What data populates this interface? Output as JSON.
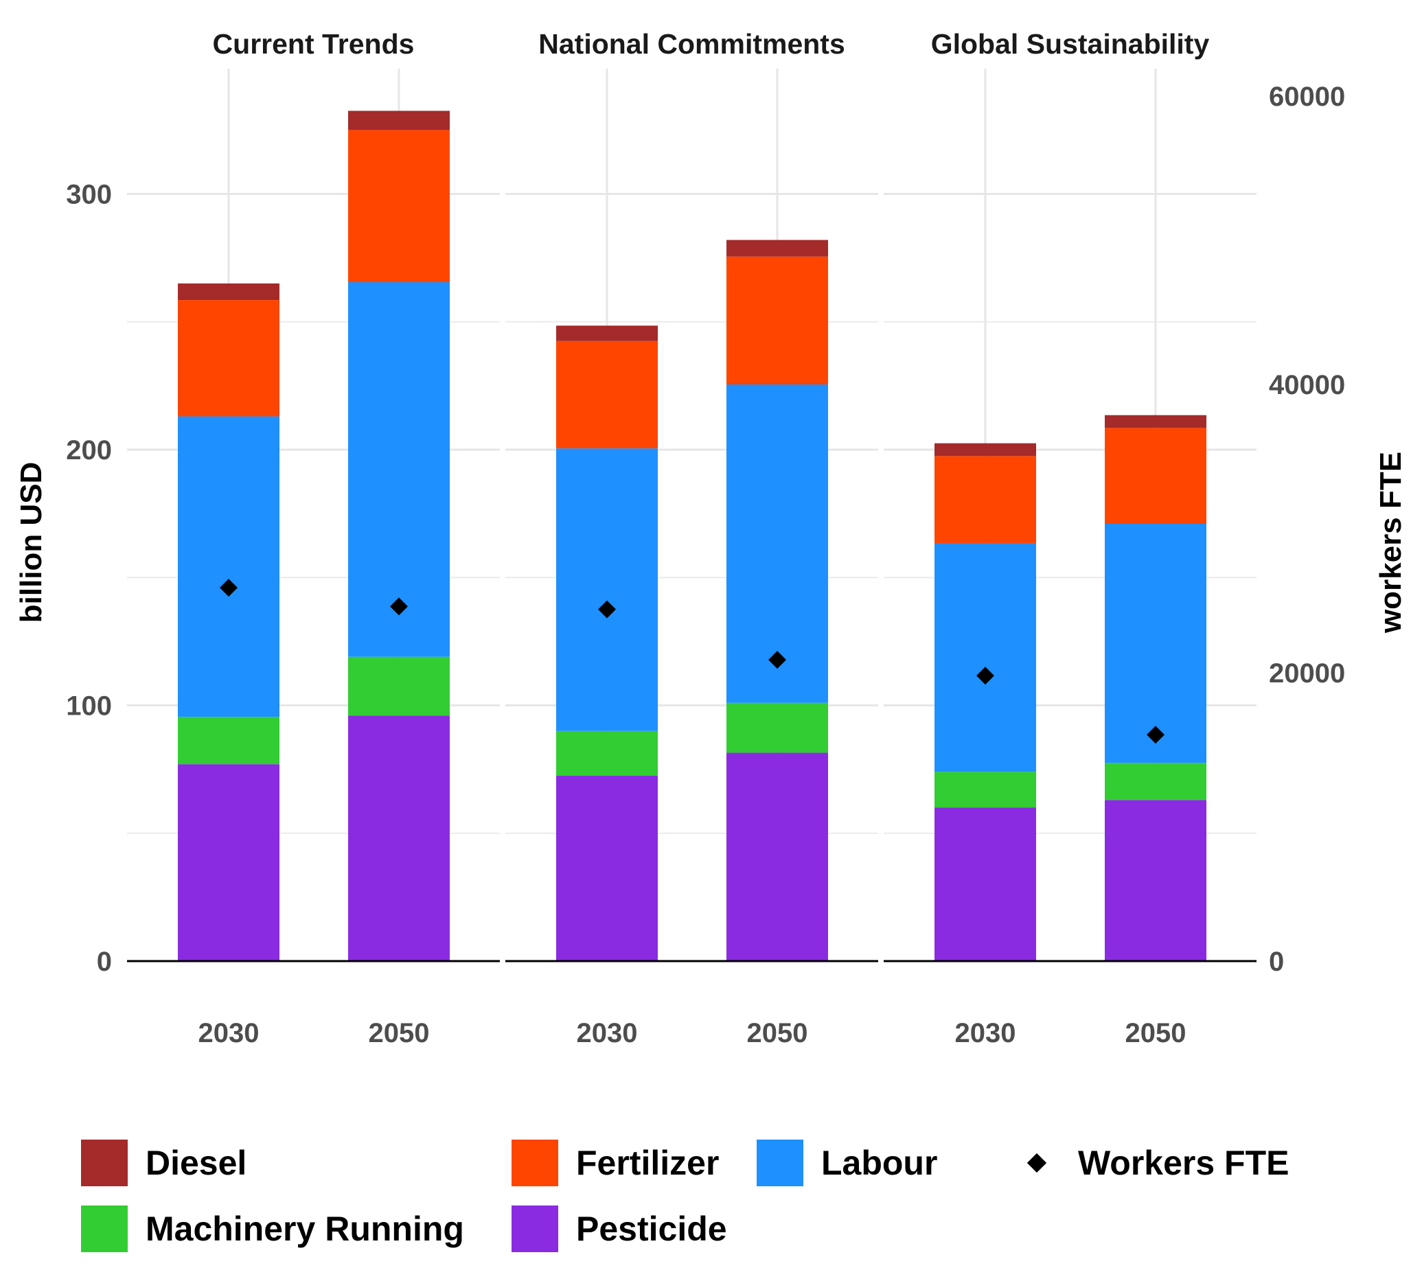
{
  "chart_data": {
    "type": "bar",
    "stacked": true,
    "facets": [
      "Current Trends",
      "National Commitments",
      "Global Sustainability"
    ],
    "categories": [
      "2030",
      "2050"
    ],
    "ylabel": "billion USD",
    "y2label": "workers FTE",
    "ylim": [
      0,
      340
    ],
    "yticks": [
      0,
      100,
      200,
      300
    ],
    "y2lim": [
      0,
      60000
    ],
    "y2ticks": [
      0,
      20000,
      40000,
      60000
    ],
    "grid": true,
    "legend_position": "bottom",
    "series": [
      {
        "name": "Pesticide",
        "color": "#8A2BE2",
        "values": {
          "Current Trends": [
            77,
            96
          ],
          "National Commitments": [
            72.5,
            81.5
          ],
          "Global Sustainability": [
            60,
            63
          ]
        }
      },
      {
        "name": "Machinery Running",
        "color": "#32CD32",
        "values": {
          "Current Trends": [
            18.5,
            23
          ],
          "National Commitments": [
            17.5,
            19.5
          ],
          "Global Sustainability": [
            14,
            14.5
          ]
        }
      },
      {
        "name": "Labour",
        "color": "#1E90FF",
        "values": {
          "Current Trends": [
            117.5,
            146.5
          ],
          "National Commitments": [
            110.5,
            124.5
          ],
          "Global Sustainability": [
            89.5,
            93.5
          ]
        }
      },
      {
        "name": "Fertilizer",
        "color": "#FF4500",
        "values": {
          "Current Trends": [
            45.5,
            59.5
          ],
          "National Commitments": [
            42,
            50
          ],
          "Global Sustainability": [
            34,
            37.5
          ]
        }
      },
      {
        "name": "Diesel",
        "color": "#A52A2A",
        "values": {
          "Current Trends": [
            6.5,
            7.5
          ],
          "National Commitments": [
            6,
            6.5
          ],
          "Global Sustainability": [
            5,
            5
          ]
        }
      }
    ],
    "points": {
      "name": "Workers FTE",
      "color": "#000000",
      "axis": "secondary",
      "values": {
        "Current Trends": [
          25900,
          24600
        ],
        "National Commitments": [
          24400,
          20900
        ],
        "Global Sustainability": [
          19800,
          15700
        ]
      }
    }
  },
  "legend": {
    "items": [
      {
        "label": "Diesel",
        "color": "#A52A2A",
        "kind": "box"
      },
      {
        "label": "Fertilizer",
        "color": "#FF4500",
        "kind": "box"
      },
      {
        "label": "Labour",
        "color": "#1E90FF",
        "kind": "box"
      },
      {
        "label": "Workers FTE",
        "color": "#000000",
        "kind": "diamond"
      },
      {
        "label": "Machinery Running",
        "color": "#32CD32",
        "kind": "box"
      },
      {
        "label": "Pesticide",
        "color": "#8A2BE2",
        "kind": "box"
      }
    ]
  }
}
